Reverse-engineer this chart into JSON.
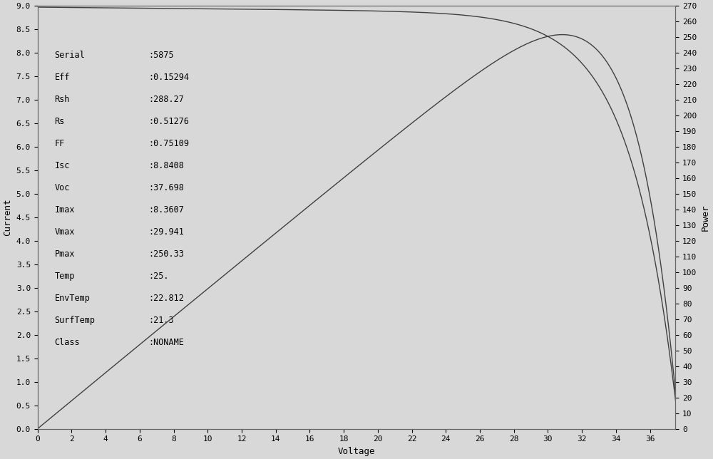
{
  "serial": "5875",
  "Eff": 0.15294,
  "Rsh": 288.27,
  "Rs": 0.51276,
  "FF": 0.75109,
  "Isc": 8.8408,
  "Voc": 37.698,
  "Imax": 8.3607,
  "Vmax": 29.941,
  "Pmax": 250.33,
  "Temp": 25.0,
  "EnvTemp": 22.812,
  "SurfTemp": 21.3,
  "Class": "NONAME",
  "xlabel": "Voltage",
  "ylabel_left": "Current",
  "ylabel_right": "Power",
  "xlim": [
    0,
    37.5
  ],
  "ylim_current": [
    0,
    9.0
  ],
  "ylim_power": [
    0,
    270
  ],
  "bg_color": "#d8d8d8",
  "line_color": "#404040",
  "annotation_fontsize": 8.5,
  "label_fontsize": 9,
  "tick_fontsize": 8,
  "xtick_step": 2,
  "ytick_current_step": 0.5,
  "ytick_power_step": 10,
  "annot_keys": [
    "Serial",
    "Eff",
    "Rsh",
    "Rs",
    "FF",
    "Isc",
    "Voc",
    "Imax",
    "Vmax",
    "Pmax",
    "Temp",
    "EnvTemp",
    "SurfTemp",
    "Class"
  ],
  "annot_vals": [
    ":5875",
    ":0.15294",
    ":288.27",
    ":0.51276",
    ":0.75109",
    ":8.8408",
    ":37.698",
    ":8.3607",
    ":29.941",
    ":250.33",
    ":25.",
    ":22.812",
    ":21.3",
    ":NONAME"
  ]
}
